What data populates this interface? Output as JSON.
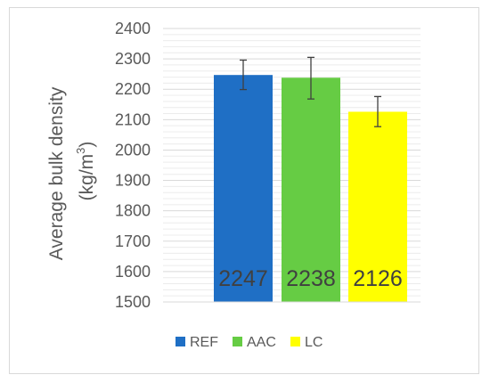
{
  "chart_data": {
    "type": "bar",
    "categories": [
      "REF",
      "AAC",
      "LC"
    ],
    "values": [
      2247,
      2238,
      2126
    ],
    "error_bars": [
      {
        "low": 2199,
        "high": 2296
      },
      {
        "low": 2168,
        "high": 2305
      },
      {
        "low": 2077,
        "high": 2176
      }
    ],
    "data_labels": [
      "2247",
      "2238",
      "2126"
    ],
    "colors": [
      "#1f6fc5",
      "#66cc44",
      "#ffff00"
    ],
    "ylabel_line1": "Average bulk density",
    "ylabel_unit": "(kg/m",
    "ylabel_sup": "3",
    "ylabel_close": ")",
    "ylim": [
      1500,
      2400
    ],
    "yticks": [
      1500,
      1600,
      1700,
      1800,
      1900,
      2000,
      2100,
      2200,
      2300,
      2400
    ],
    "grid": true,
    "legend_placement": "bottom",
    "legend": [
      "REF",
      "AAC",
      "LC"
    ]
  }
}
